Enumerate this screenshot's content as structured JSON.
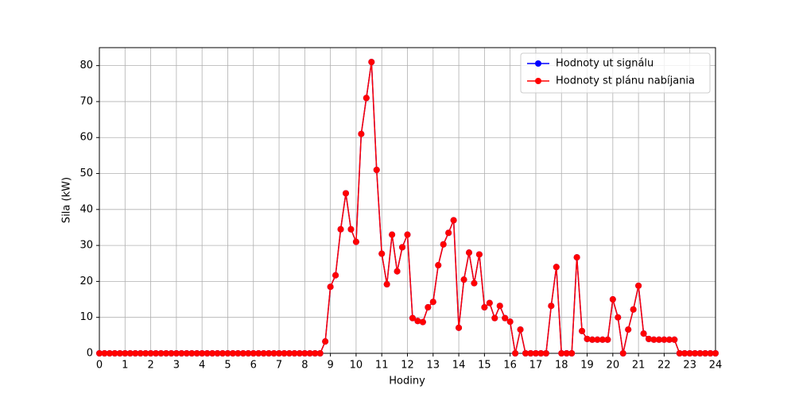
{
  "chart_data": {
    "type": "line",
    "xlabel": "Hodiny",
    "ylabel": "Sila (kW)",
    "x": [
      0,
      0.2,
      0.4,
      0.6,
      0.8,
      1,
      1.2,
      1.4,
      1.6,
      1.8,
      2,
      2.2,
      2.4,
      2.6,
      2.8,
      3,
      3.2,
      3.4,
      3.6,
      3.8,
      4,
      4.2,
      4.4,
      4.6,
      4.8,
      5,
      5.2,
      5.4,
      5.6,
      5.8,
      6,
      6.2,
      6.4,
      6.6,
      6.8,
      7,
      7.2,
      7.4,
      7.6,
      7.8,
      8,
      8.2,
      8.4,
      8.6,
      8.8,
      9,
      9.2,
      9.4,
      9.6,
      9.8,
      10,
      10.2,
      10.4,
      10.6,
      10.8,
      11,
      11.2,
      11.4,
      11.6,
      11.8,
      12,
      12.2,
      12.4,
      12.6,
      12.8,
      13,
      13.2,
      13.4,
      13.6,
      13.8,
      14,
      14.2,
      14.4,
      14.6,
      14.8,
      15,
      15.2,
      15.4,
      15.6,
      15.8,
      16,
      16.2,
      16.4,
      16.6,
      16.8,
      17,
      17.2,
      17.4,
      17.6,
      17.8,
      18,
      18.2,
      18.4,
      18.6,
      18.8,
      19,
      19.2,
      19.4,
      19.6,
      19.8,
      20,
      20.2,
      20.4,
      20.6,
      20.8,
      21,
      21.2,
      21.4,
      21.6,
      21.8,
      22,
      22.2,
      22.4,
      22.6,
      22.8,
      23,
      23.2,
      23.4,
      23.6,
      23.8,
      24
    ],
    "series": [
      {
        "name": "Hodnoty ut signálu",
        "color": "#0000ff",
        "values": [
          0,
          0,
          0,
          0,
          0,
          0,
          0,
          0,
          0,
          0,
          0,
          0,
          0,
          0,
          0,
          0,
          0,
          0,
          0,
          0,
          0,
          0,
          0,
          0,
          0,
          0,
          0,
          0,
          0,
          0,
          0,
          0,
          0,
          0,
          0,
          0,
          0,
          0,
          0,
          0,
          0,
          0,
          0,
          0,
          3.3,
          18.5,
          21.7,
          34.5,
          44.5,
          34.5,
          31,
          61,
          71,
          81,
          51,
          27.7,
          19.2,
          33,
          22.8,
          29.5,
          33,
          9.8,
          9,
          8.7,
          12.8,
          14.3,
          24.5,
          30.3,
          33.5,
          37,
          7.1,
          20.5,
          28,
          19.5,
          27.5,
          12.8,
          14,
          9.8,
          13.2,
          9.8,
          8.8,
          0,
          6.6,
          0,
          0,
          0,
          0,
          0,
          13.2,
          24,
          0,
          0,
          0,
          26.7,
          6.2,
          4,
          3.8,
          3.8,
          3.8,
          3.8,
          15,
          10,
          0,
          6.6,
          12.2,
          18.8,
          5.5,
          4,
          3.8,
          3.8,
          3.8,
          3.8,
          3.8,
          0,
          0,
          0,
          0,
          0,
          0,
          0,
          0
        ]
      },
      {
        "name": "Hodnoty st plánu nabíjania",
        "color": "#ff0000",
        "values": [
          0,
          0,
          0,
          0,
          0,
          0,
          0,
          0,
          0,
          0,
          0,
          0,
          0,
          0,
          0,
          0,
          0,
          0,
          0,
          0,
          0,
          0,
          0,
          0,
          0,
          0,
          0,
          0,
          0,
          0,
          0,
          0,
          0,
          0,
          0,
          0,
          0,
          0,
          0,
          0,
          0,
          0,
          0,
          0,
          3.3,
          18.5,
          21.7,
          34.5,
          44.5,
          34.5,
          31,
          61,
          71,
          81,
          51,
          27.7,
          19.2,
          33,
          22.8,
          29.5,
          33,
          9.8,
          9,
          8.7,
          12.8,
          14.3,
          24.5,
          30.3,
          33.5,
          37,
          7.1,
          20.5,
          28,
          19.5,
          27.5,
          12.8,
          14,
          9.8,
          13.2,
          9.8,
          8.8,
          0,
          6.6,
          0,
          0,
          0,
          0,
          0,
          13.2,
          24,
          0,
          0,
          0,
          26.7,
          6.2,
          4,
          3.8,
          3.8,
          3.8,
          3.8,
          15,
          10,
          0,
          6.6,
          12.2,
          18.8,
          5.5,
          4,
          3.8,
          3.8,
          3.8,
          3.8,
          3.8,
          0,
          0,
          0,
          0,
          0,
          0,
          0,
          0
        ]
      }
    ],
    "xlim": [
      0,
      24
    ],
    "xticks": [
      0,
      1,
      2,
      3,
      4,
      5,
      6,
      7,
      8,
      9,
      10,
      11,
      12,
      13,
      14,
      15,
      16,
      17,
      18,
      19,
      20,
      21,
      22,
      23,
      24
    ],
    "ylim": [
      0,
      85
    ],
    "yticks": [
      0,
      10,
      20,
      30,
      40,
      50,
      60,
      70,
      80
    ],
    "grid": true,
    "legend": "upper right"
  }
}
